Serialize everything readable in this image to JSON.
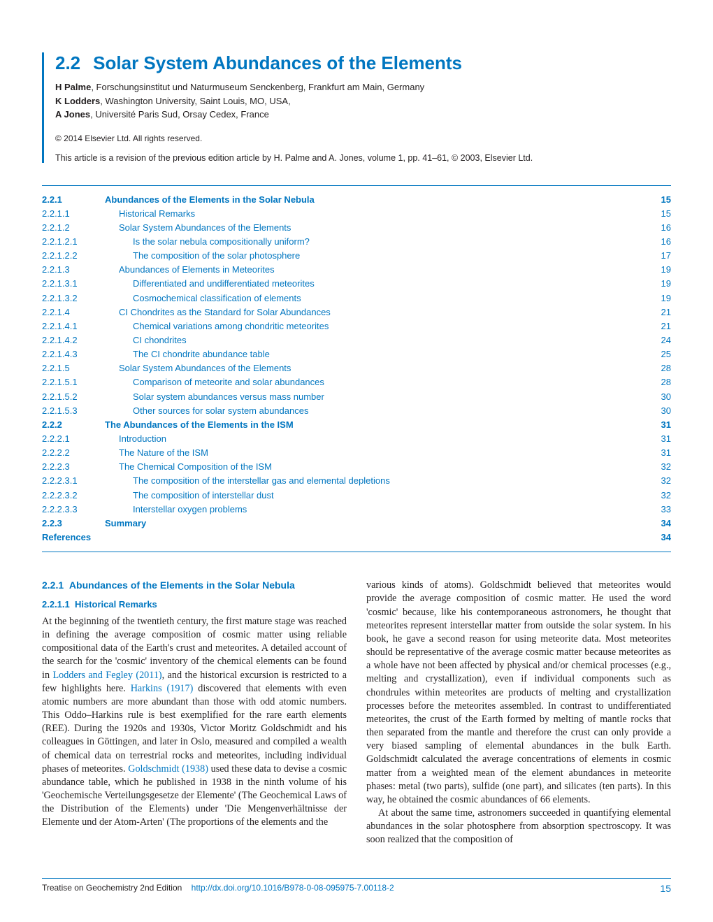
{
  "header": {
    "chapter_number": "2.2",
    "chapter_title": "Solar System Abundances of the Elements",
    "authors": [
      {
        "name": "H Palme",
        "affiliation": ", Forschungsinstitut und Naturmuseum Senckenberg, Frankfurt am Main, Germany"
      },
      {
        "name": "K Lodders",
        "affiliation": ", Washington University, Saint Louis, MO, USA,"
      },
      {
        "name": "A Jones",
        "affiliation": ", Université Paris Sud, Orsay Cedex, France"
      }
    ],
    "copyright": "© 2014 Elsevier Ltd. All rights reserved.",
    "revision_note": "This article is a revision of the previous edition article by H. Palme and A. Jones, volume 1, pp. 41–61, © 2003, Elsevier Ltd."
  },
  "toc": [
    {
      "num": "2.2.1",
      "title": "Abundances of the Elements in the Solar Nebula",
      "page": "15",
      "bold": true,
      "indent": 0
    },
    {
      "num": "2.2.1.1",
      "title": "Historical Remarks",
      "page": "15",
      "bold": false,
      "indent": 1
    },
    {
      "num": "2.2.1.2",
      "title": "Solar System Abundances of the Elements",
      "page": "16",
      "bold": false,
      "indent": 1
    },
    {
      "num": "2.2.1.2.1",
      "title": "Is the solar nebula compositionally uniform?",
      "page": "16",
      "bold": false,
      "indent": 2
    },
    {
      "num": "2.2.1.2.2",
      "title": "The composition of the solar photosphere",
      "page": "17",
      "bold": false,
      "indent": 2
    },
    {
      "num": "2.2.1.3",
      "title": "Abundances of Elements in Meteorites",
      "page": "19",
      "bold": false,
      "indent": 1
    },
    {
      "num": "2.2.1.3.1",
      "title": "Differentiated and undifferentiated meteorites",
      "page": "19",
      "bold": false,
      "indent": 2
    },
    {
      "num": "2.2.1.3.2",
      "title": "Cosmochemical classification of elements",
      "page": "19",
      "bold": false,
      "indent": 2
    },
    {
      "num": "2.2.1.4",
      "title": "CI Chondrites as the Standard for Solar Abundances",
      "page": "21",
      "bold": false,
      "indent": 1
    },
    {
      "num": "2.2.1.4.1",
      "title": "Chemical variations among chondritic meteorites",
      "page": "21",
      "bold": false,
      "indent": 2
    },
    {
      "num": "2.2.1.4.2",
      "title": "CI chondrites",
      "page": "24",
      "bold": false,
      "indent": 2
    },
    {
      "num": "2.2.1.4.3",
      "title": "The CI chondrite abundance table",
      "page": "25",
      "bold": false,
      "indent": 2
    },
    {
      "num": "2.2.1.5",
      "title": "Solar System Abundances of the Elements",
      "page": "28",
      "bold": false,
      "indent": 1
    },
    {
      "num": "2.2.1.5.1",
      "title": "Comparison of meteorite and solar abundances",
      "page": "28",
      "bold": false,
      "indent": 2
    },
    {
      "num": "2.2.1.5.2",
      "title": "Solar system abundances versus mass number",
      "page": "30",
      "bold": false,
      "indent": 2
    },
    {
      "num": "2.2.1.5.3",
      "title": "Other sources for solar system abundances",
      "page": "30",
      "bold": false,
      "indent": 2
    },
    {
      "num": "2.2.2",
      "title": "The Abundances of the Elements in the ISM",
      "page": "31",
      "bold": true,
      "indent": 0
    },
    {
      "num": "2.2.2.1",
      "title": "Introduction",
      "page": "31",
      "bold": false,
      "indent": 1
    },
    {
      "num": "2.2.2.2",
      "title": "The Nature of the ISM",
      "page": "31",
      "bold": false,
      "indent": 1
    },
    {
      "num": "2.2.2.3",
      "title": "The Chemical Composition of the ISM",
      "page": "32",
      "bold": false,
      "indent": 1
    },
    {
      "num": "2.2.2.3.1",
      "title": "The composition of the interstellar gas and elemental depletions",
      "page": "32",
      "bold": false,
      "indent": 2
    },
    {
      "num": "2.2.2.3.2",
      "title": "The composition of interstellar dust",
      "page": "32",
      "bold": false,
      "indent": 2
    },
    {
      "num": "2.2.2.3.3",
      "title": "Interstellar oxygen problems",
      "page": "33",
      "bold": false,
      "indent": 2
    },
    {
      "num": "2.2.3",
      "title": "Summary",
      "page": "34",
      "bold": true,
      "indent": 0
    },
    {
      "num": "References",
      "title": "",
      "page": "34",
      "bold": true,
      "indent": 0
    }
  ],
  "body": {
    "section_heading_num": "2.2.1",
    "section_heading_text": "Abundances of the Elements in the Solar Nebula",
    "sub_heading_num": "2.2.1.1",
    "sub_heading_text": "Historical Remarks",
    "left_p1_a": "At the beginning of the twentieth century, the first mature stage was reached in defining the average composition of cosmic matter using reliable compositional data of the Earth's crust and meteorites. A detailed account of the search for the 'cosmic' inventory of the chemical elements can be found in ",
    "ref1": "Lodders and Fegley (2011)",
    "left_p1_b": ", and the historical excursion is restricted to a few highlights here. ",
    "ref2": "Harkins (1917)",
    "left_p1_c": " discovered that elements with even atomic numbers are more abundant than those with odd atomic numbers. This Oddo–Harkins rule is best exemplified for the rare earth elements (REE). During the 1920s and 1930s, Victor Moritz Goldschmidt and his colleagues in Göttingen, and later in Oslo, measured and compiled a wealth of chemical data on terrestrial rocks and meteorites, including individual phases of meteorites. ",
    "ref3": "Goldschmidt (1938)",
    "left_p1_d": " used these data to devise a cosmic abundance table, which he published in 1938 in the ninth volume of his 'Geochemische Verteilungsgesetze der Elemente' (The Geochemical Laws of the Distribution of the Elements) under 'Die Mengenverhältnisse der Elemente und der Atom-Arten' (The proportions of the elements and the",
    "right_p1": "various kinds of atoms). Goldschmidt believed that meteorites would provide the average composition of cosmic matter. He used the word 'cosmic' because, like his contemporaneous astronomers, he thought that meteorites represent interstellar matter from outside the solar system. In his book, he gave a second reason for using meteorite data. Most meteorites should be representative of the average cosmic matter because meteorites as a whole have not been affected by physical and/or chemical processes (e.g., melting and crystallization), even if individual components such as chondrules within meteorites are products of melting and crystallization processes before the meteorites assembled. In contrast to undifferentiated meteorites, the crust of the Earth formed by melting of mantle rocks that then separated from the mantle and therefore the crust can only provide a very biased sampling of elemental abundances in the bulk Earth. Goldschmidt calculated the average concentrations of elements in cosmic matter from a weighted mean of the element abundances in meteorite phases: metal (two parts), sulfide (one part), and silicates (ten parts). In this way, he obtained the cosmic abundances of 66 elements.",
    "right_p2": "At about the same time, astronomers succeeded in quantifying elemental abundances in the solar photosphere from absorption spectroscopy. It was soon realized that the composition of"
  },
  "footer": {
    "left_text": "Treatise on Geochemistry 2nd Edition",
    "doi": "http://dx.doi.org/10.1016/B978-0-08-095975-7.00118-2",
    "page_number": "15"
  },
  "colors": {
    "accent": "#0076c0",
    "text": "#231f20",
    "background": "#ffffff"
  }
}
